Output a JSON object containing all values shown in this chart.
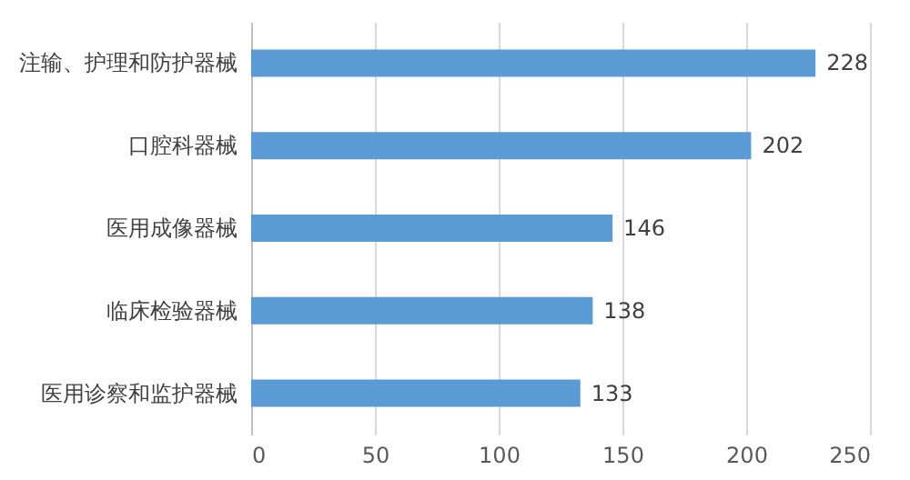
{
  "chart_data": {
    "type": "bar",
    "orientation": "horizontal",
    "categories": [
      "注输、护理和防护器械",
      "口腔科器械",
      "医用成像器械",
      "临床检验器械",
      "医用诊察和监护器械"
    ],
    "values": [
      228,
      202,
      146,
      138,
      133
    ],
    "color": "#5b9bd5",
    "xlim": [
      0,
      250
    ],
    "xticks": [
      0,
      50,
      100,
      150,
      200,
      250
    ],
    "grid": "x",
    "data_labels": true
  }
}
